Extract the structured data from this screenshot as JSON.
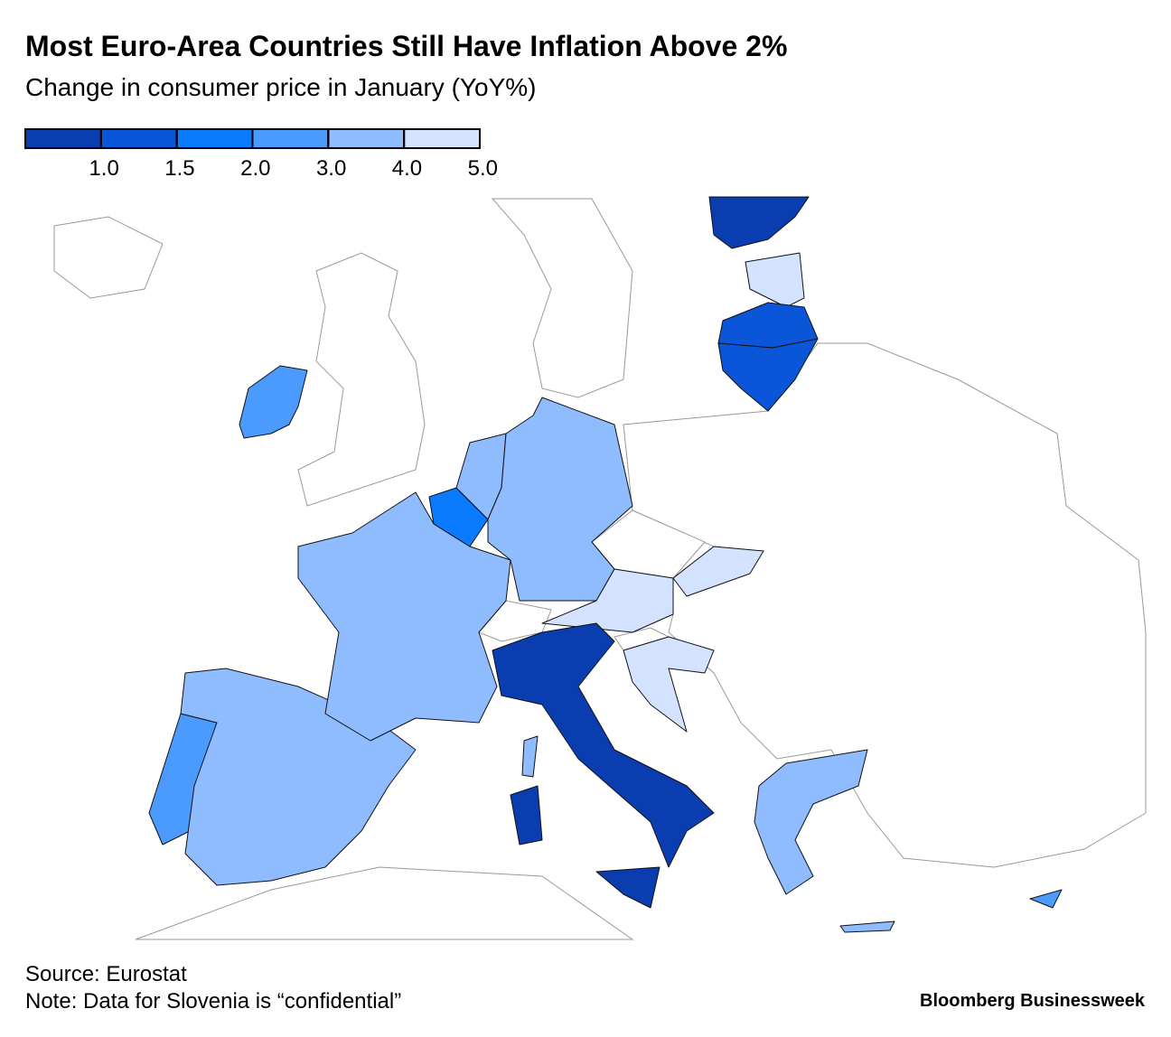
{
  "header": {
    "title": "Most Euro-Area Countries Still Have Inflation Above 2%",
    "subtitle": "Change in consumer price in January (YoY%)"
  },
  "legend": {
    "colors": [
      "#0a3db0",
      "#0b55d9",
      "#0a7aff",
      "#4b9bff",
      "#8fbcff",
      "#d3e3ff"
    ],
    "ticks": [
      {
        "value": 1,
        "label": "1.0"
      },
      {
        "value": 1.5,
        "label": "1.5"
      },
      {
        "value": 2,
        "label": "2.0"
      },
      {
        "value": 3,
        "label": "3.0"
      },
      {
        "value": 4,
        "label": "4.0"
      },
      {
        "value": 5,
        "label": "5.0"
      }
    ]
  },
  "footer": {
    "source": "Source: Eurostat",
    "note": "Note: Data for Slovenia is “confidential”",
    "brand": "Bloomberg Businessweek"
  }
}
